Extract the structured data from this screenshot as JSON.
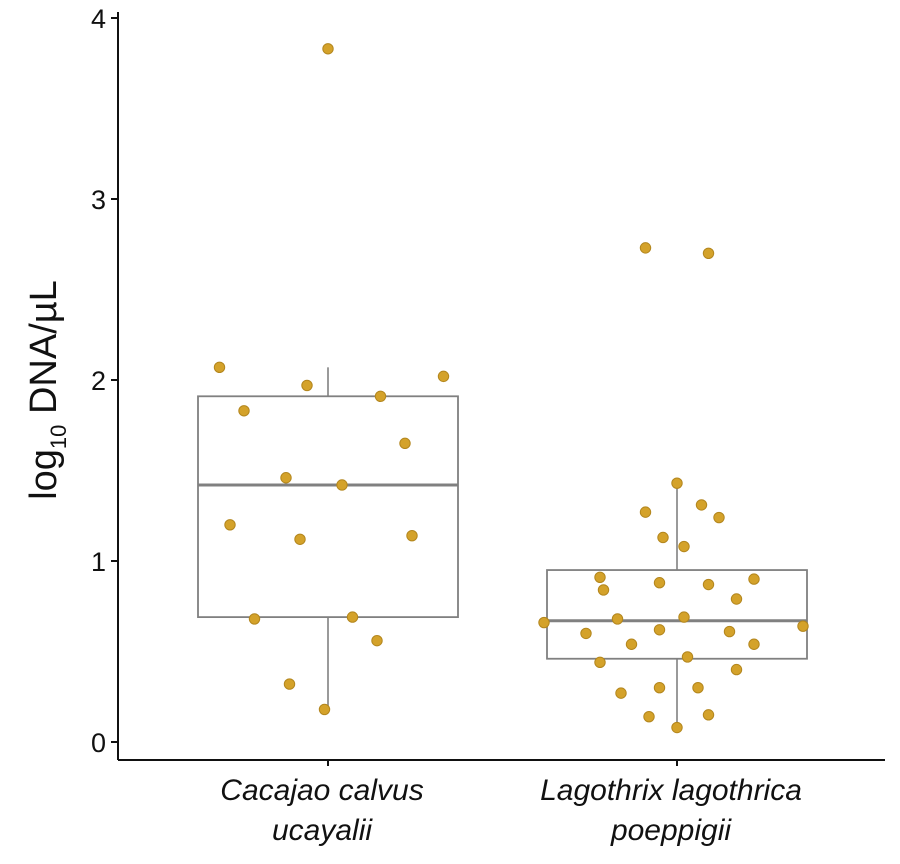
{
  "chart_data": {
    "type": "box",
    "ylabel": {
      "main_pre": "log",
      "sub": "10",
      "main_post": " DNA/µL"
    },
    "ylim": [
      -0.1,
      4.05
    ],
    "yticks": [
      "0",
      "1",
      "2",
      "3",
      "4"
    ],
    "categories": [
      {
        "line1": "Cacajao calvus",
        "line2": "ucayalii"
      },
      {
        "line1": "Lagothrix lagothrica",
        "line2": "poeppigii"
      }
    ],
    "boxes": [
      {
        "whisker_low": 0.18,
        "q1": 0.69,
        "median": 1.42,
        "q3": 1.91,
        "whisker_high": 2.07
      },
      {
        "whisker_low": 0.08,
        "q1": 0.46,
        "median": 0.67,
        "q3": 0.95,
        "whisker_high": 1.43
      }
    ],
    "point_color": "#d4a22a",
    "point_edge": "#b3861d",
    "box_color": "#808080",
    "series": [
      {
        "points": [
          [
            -0.31,
            2.07
          ],
          [
            -0.24,
            1.83
          ],
          [
            -0.06,
            1.97
          ],
          [
            0.15,
            1.91
          ],
          [
            0.33,
            2.02
          ],
          [
            -0.12,
            1.46
          ],
          [
            0.04,
            1.42
          ],
          [
            0.22,
            1.65
          ],
          [
            -0.28,
            1.2
          ],
          [
            -0.08,
            1.12
          ],
          [
            0.24,
            1.14
          ],
          [
            -0.21,
            0.68
          ],
          [
            0.07,
            0.69
          ],
          [
            0.14,
            0.56
          ],
          [
            -0.11,
            0.32
          ],
          [
            -0.01,
            0.18
          ],
          [
            0.0,
            3.83
          ]
        ]
      },
      {
        "points": [
          [
            -0.09,
            2.73
          ],
          [
            0.09,
            2.7
          ],
          [
            0.0,
            1.43
          ],
          [
            -0.09,
            1.27
          ],
          [
            0.07,
            1.31
          ],
          [
            0.12,
            1.24
          ],
          [
            -0.04,
            1.13
          ],
          [
            0.02,
            1.08
          ],
          [
            -0.22,
            0.91
          ],
          [
            -0.05,
            0.88
          ],
          [
            0.09,
            0.87
          ],
          [
            0.22,
            0.9
          ],
          [
            -0.21,
            0.84
          ],
          [
            0.17,
            0.79
          ],
          [
            -0.17,
            0.68
          ],
          [
            0.02,
            0.69
          ],
          [
            -0.38,
            0.66
          ],
          [
            0.36,
            0.64
          ],
          [
            -0.26,
            0.6
          ],
          [
            0.15,
            0.61
          ],
          [
            -0.05,
            0.62
          ],
          [
            -0.13,
            0.54
          ],
          [
            0.22,
            0.54
          ],
          [
            0.03,
            0.47
          ],
          [
            -0.22,
            0.44
          ],
          [
            0.17,
            0.4
          ],
          [
            -0.16,
            0.27
          ],
          [
            -0.05,
            0.3
          ],
          [
            0.06,
            0.3
          ],
          [
            -0.08,
            0.14
          ],
          [
            0.09,
            0.15
          ],
          [
            0.0,
            0.08
          ]
        ]
      }
    ]
  }
}
